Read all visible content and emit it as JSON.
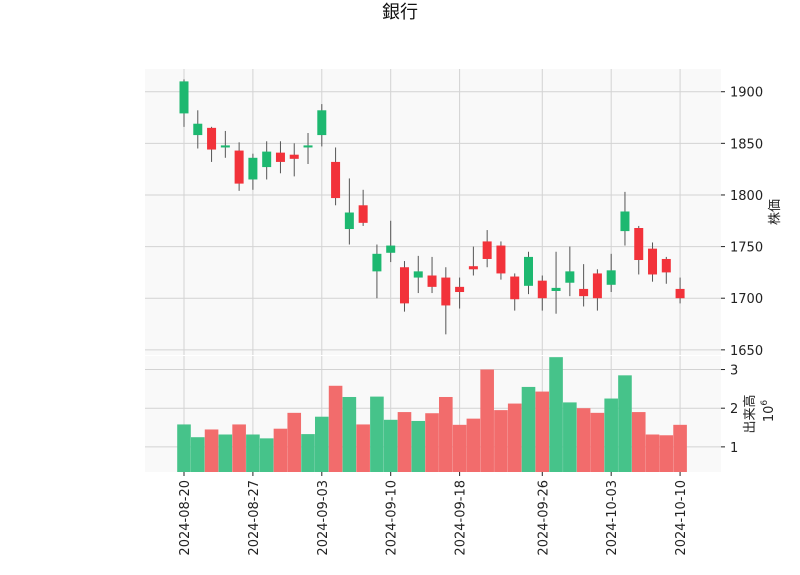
{
  "chart_data": {
    "type": "candlestick",
    "title": "銀行",
    "price_axis": {
      "label": "株価",
      "ticks": [
        1650,
        1700,
        1750,
        1800,
        1850,
        1900
      ],
      "ylim": [
        1645,
        1922
      ],
      "position": "right"
    },
    "volume_axis": {
      "label_line1": "出来高",
      "label_line2": "10",
      "label_exponent": "6",
      "ticks": [
        1,
        2,
        3
      ],
      "tick_labels": [
        "1",
        "2",
        "3"
      ],
      "ylim": [
        0.35,
        3.35
      ],
      "position": "right"
    },
    "x_tick_labels": [
      "2024-08-20",
      "2024-08-27",
      "2024-09-03",
      "2024-09-10",
      "2024-09-18",
      "2024-09-26",
      "2024-10-03",
      "2024-10-10"
    ],
    "x_tick_positions": [
      0,
      5,
      10,
      15,
      20,
      26,
      31,
      36
    ],
    "colors": {
      "up": "#1db870",
      "down": "#f2323a",
      "up_volume": "#46c38a",
      "down_volume": "#f26c6c",
      "grid": "#d3d3d3",
      "panel_bg": "#f9f9f9"
    },
    "candles": [
      {
        "open": 1879,
        "high": 1912,
        "low": 1866,
        "close": 1910
      },
      {
        "open": 1858,
        "high": 1882,
        "low": 1845,
        "close": 1869
      },
      {
        "open": 1865,
        "high": 1866,
        "low": 1832,
        "close": 1844
      },
      {
        "open": 1846,
        "high": 1862,
        "low": 1836,
        "close": 1848
      },
      {
        "open": 1843,
        "high": 1851,
        "low": 1804,
        "close": 1811
      },
      {
        "open": 1815,
        "high": 1840,
        "low": 1805,
        "close": 1836
      },
      {
        "open": 1827,
        "high": 1852,
        "low": 1815,
        "close": 1842
      },
      {
        "open": 1841,
        "high": 1852,
        "low": 1821,
        "close": 1832
      },
      {
        "open": 1839,
        "high": 1850,
        "low": 1818,
        "close": 1835
      },
      {
        "open": 1846,
        "high": 1860,
        "low": 1830,
        "close": 1848
      },
      {
        "open": 1858,
        "high": 1888,
        "low": 1847,
        "close": 1882
      },
      {
        "open": 1832,
        "high": 1846,
        "low": 1790,
        "close": 1797
      },
      {
        "open": 1767,
        "high": 1816,
        "low": 1752,
        "close": 1783
      },
      {
        "open": 1790,
        "high": 1805,
        "low": 1770,
        "close": 1773
      },
      {
        "open": 1726,
        "high": 1752,
        "low": 1700,
        "close": 1743
      },
      {
        "open": 1744,
        "high": 1775,
        "low": 1735,
        "close": 1751
      },
      {
        "open": 1730,
        "high": 1736,
        "low": 1687,
        "close": 1695
      },
      {
        "open": 1720,
        "high": 1741,
        "low": 1705,
        "close": 1726
      },
      {
        "open": 1722,
        "high": 1740,
        "low": 1705,
        "close": 1711
      },
      {
        "open": 1720,
        "high": 1730,
        "low": 1665,
        "close": 1693
      },
      {
        "open": 1711,
        "high": 1720,
        "low": 1690,
        "close": 1706
      },
      {
        "open": 1731,
        "high": 1750,
        "low": 1722,
        "close": 1728
      },
      {
        "open": 1755,
        "high": 1766,
        "low": 1730,
        "close": 1738
      },
      {
        "open": 1751,
        "high": 1755,
        "low": 1718,
        "close": 1724
      },
      {
        "open": 1721,
        "high": 1724,
        "low": 1688,
        "close": 1699
      },
      {
        "open": 1712,
        "high": 1745,
        "low": 1704,
        "close": 1740
      },
      {
        "open": 1717,
        "high": 1722,
        "low": 1688,
        "close": 1700
      },
      {
        "open": 1707,
        "high": 1745,
        "low": 1685,
        "close": 1710
      },
      {
        "open": 1715,
        "high": 1750,
        "low": 1702,
        "close": 1726
      },
      {
        "open": 1709,
        "high": 1733,
        "low": 1692,
        "close": 1702
      },
      {
        "open": 1724,
        "high": 1728,
        "low": 1688,
        "close": 1700
      },
      {
        "open": 1713,
        "high": 1743,
        "low": 1706,
        "close": 1727
      },
      {
        "open": 1765,
        "high": 1803,
        "low": 1751,
        "close": 1784
      },
      {
        "open": 1768,
        "high": 1770,
        "low": 1723,
        "close": 1737
      },
      {
        "open": 1748,
        "high": 1754,
        "low": 1716,
        "close": 1723
      },
      {
        "open": 1738,
        "high": 1740,
        "low": 1714,
        "close": 1725
      },
      {
        "open": 1709,
        "high": 1720,
        "low": 1695,
        "close": 1700
      }
    ],
    "volume": [
      1.58,
      1.25,
      1.45,
      1.32,
      1.58,
      1.32,
      1.22,
      1.47,
      1.88,
      1.33,
      1.78,
      2.58,
      2.29,
      1.58,
      2.3,
      1.7,
      1.9,
      1.67,
      1.87,
      2.29,
      1.57,
      1.73,
      3.0,
      1.95,
      2.12,
      2.55,
      2.43,
      3.32,
      2.15,
      2.0,
      1.88,
      2.25,
      2.85,
      1.9,
      1.32,
      1.3,
      1.57
    ]
  }
}
